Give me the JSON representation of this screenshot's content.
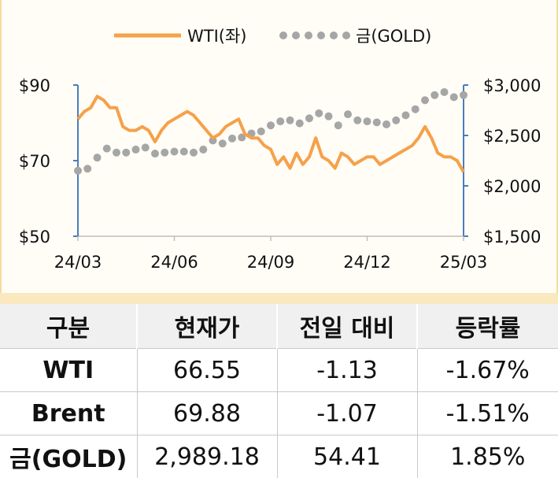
{
  "legend": {
    "wti": "WTI(좌)",
    "gold": "금(GOLD)"
  },
  "colors": {
    "wti": "#f5a14a",
    "gold": "#a6a6a6",
    "axis": "#4a7ebb",
    "panel_border": "#f4dca0",
    "band": "#fae8bf"
  },
  "chart_data": {
    "type": "line",
    "x_tick_labels": [
      "24/03",
      "24/06",
      "24/09",
      "24/12",
      "25/03"
    ],
    "y_left": {
      "ticks": [
        "$90",
        "$70",
        "$50"
      ],
      "range": [
        50,
        90
      ]
    },
    "y_right": {
      "ticks": [
        "$3,000",
        "$2,500",
        "$2,000",
        "$1,500"
      ],
      "range": [
        1500,
        3000
      ]
    },
    "series": [
      {
        "name": "WTI(좌)",
        "axis": "left",
        "style": "line",
        "x": [
          0.0,
          0.2,
          0.4,
          0.6,
          0.8,
          1.0,
          1.2,
          1.4,
          1.6,
          1.8,
          2.0,
          2.2,
          2.4,
          2.6,
          2.8,
          3.0,
          3.2,
          3.4,
          3.6,
          3.8,
          4.0,
          4.2,
          4.4,
          4.6,
          4.8,
          5.0,
          5.2,
          5.4,
          5.6,
          5.8,
          6.0,
          6.2,
          6.4,
          6.6,
          6.8,
          7.0,
          7.2,
          7.4,
          7.6,
          7.8,
          8.0,
          8.2,
          8.4,
          8.6,
          8.8,
          9.0,
          9.2,
          9.4,
          9.6,
          9.8,
          10.0,
          10.2,
          10.4,
          10.6,
          10.8,
          11.0,
          11.2,
          11.4,
          11.6,
          11.8,
          12.0
        ],
        "values": [
          81,
          83,
          84,
          87,
          86,
          84,
          84,
          79,
          78,
          78,
          79,
          78,
          75,
          78,
          80,
          81,
          82,
          83,
          82,
          80,
          78,
          76,
          77,
          79,
          80,
          81,
          77,
          76,
          76,
          74,
          73,
          69,
          71,
          68,
          72,
          69,
          71,
          76,
          71,
          70,
          68,
          72,
          71,
          69,
          70,
          71,
          71,
          69,
          70,
          71,
          72,
          73,
          74,
          76,
          79,
          76,
          72,
          71,
          71,
          70,
          67
        ]
      },
      {
        "name": "금(GOLD)",
        "axis": "right",
        "style": "dots",
        "x": [
          0.0,
          0.3,
          0.6,
          0.9,
          1.2,
          1.5,
          1.8,
          2.1,
          2.4,
          2.7,
          3.0,
          3.3,
          3.6,
          3.9,
          4.2,
          4.5,
          4.8,
          5.1,
          5.4,
          5.7,
          6.0,
          6.3,
          6.6,
          6.9,
          7.2,
          7.5,
          7.8,
          8.1,
          8.4,
          8.7,
          9.0,
          9.3,
          9.6,
          9.9,
          10.2,
          10.5,
          10.8,
          11.1,
          11.4,
          11.7,
          12.0
        ],
        "values": [
          2150,
          2170,
          2280,
          2370,
          2330,
          2330,
          2360,
          2380,
          2320,
          2330,
          2340,
          2340,
          2330,
          2360,
          2450,
          2420,
          2470,
          2480,
          2520,
          2540,
          2600,
          2640,
          2650,
          2620,
          2670,
          2720,
          2690,
          2600,
          2710,
          2650,
          2640,
          2630,
          2610,
          2650,
          2700,
          2760,
          2850,
          2900,
          2930,
          2880,
          2900
        ]
      }
    ]
  },
  "table": {
    "headers": [
      "구분",
      "현재가",
      "전일 대비",
      "등락률"
    ],
    "rows": [
      [
        "WTI",
        "66.55",
        "-1.13",
        "-1.67%"
      ],
      [
        "Brent",
        "69.88",
        "-1.07",
        "-1.51%"
      ],
      [
        "금(GOLD)",
        "2,989.18",
        "54.41",
        "1.85%"
      ]
    ]
  }
}
